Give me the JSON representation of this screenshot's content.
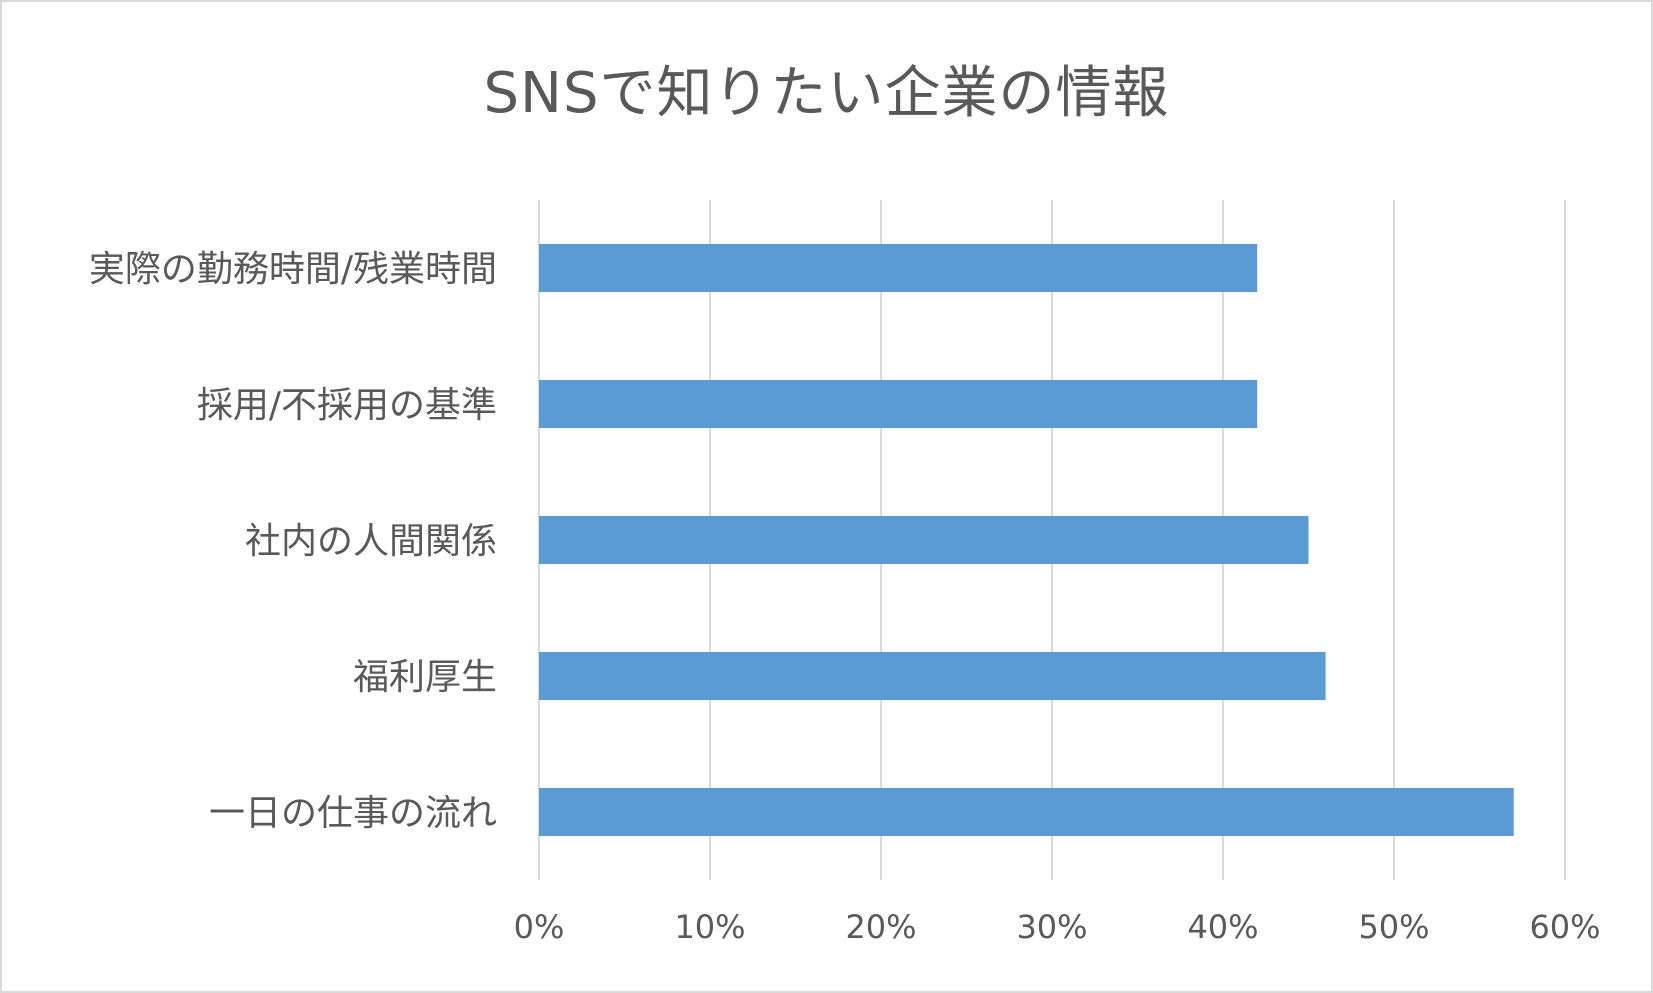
{
  "chart_data": {
    "type": "bar",
    "orientation": "horizontal",
    "title": "SNSで知りたい企業の情報",
    "categories": [
      "実際の勤務時間/残業時間",
      "採用/不採用の基準",
      "社内の人間関係",
      "福利厚生",
      "一日の仕事の流れ"
    ],
    "values": [
      42,
      42,
      45,
      46,
      57
    ],
    "xlim": [
      0,
      60
    ],
    "x_ticks": [
      0,
      10,
      20,
      30,
      40,
      50,
      60
    ],
    "x_tick_labels": [
      "0%",
      "10%",
      "20%",
      "30%",
      "40%",
      "50%",
      "60%"
    ],
    "xlabel": "",
    "ylabel": "",
    "grid": "vertical",
    "legend": "none",
    "colors": {
      "bar": "#5b9bd5",
      "grid": "#d9d9d9",
      "text": "#595959",
      "border": "#d9d9d9"
    }
  }
}
